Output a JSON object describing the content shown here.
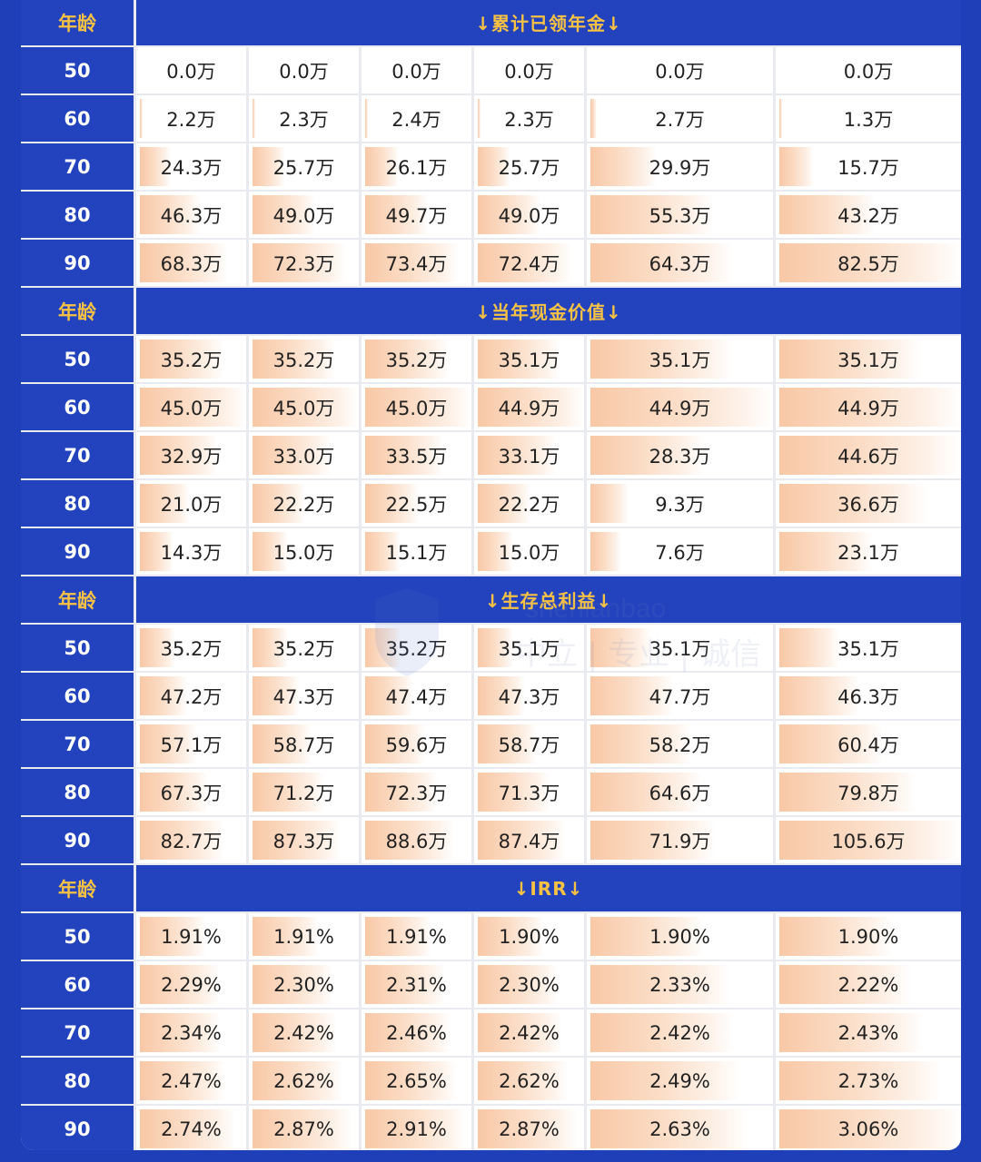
{
  "colors": {
    "header_bg": "#2243bd",
    "title_text": "#f7c244",
    "bar": "#f8c8a6"
  },
  "age_header": "年龄",
  "watermark": {
    "icon": "shield-logo-icon",
    "latin": "shenlanbao",
    "text": "中立 | 专业 | 诚信"
  },
  "chart_data": {
    "type": "table",
    "row_label_header": "年龄",
    "sections": [
      {
        "title": "↓累计已领年金↓",
        "rows": [
          {
            "age": "50",
            "values": [
              0.0,
              0.0,
              0.0,
              0.0,
              0.0,
              0.0
            ],
            "labels": [
              "0.0万",
              "0.0万",
              "0.0万",
              "0.0万",
              "0.0万",
              "0.0万"
            ]
          },
          {
            "age": "60",
            "values": [
              2.2,
              2.3,
              2.4,
              2.3,
              2.7,
              1.3
            ],
            "labels": [
              "2.2万",
              "2.3万",
              "2.4万",
              "2.3万",
              "2.7万",
              "1.3万"
            ]
          },
          {
            "age": "70",
            "values": [
              24.3,
              25.7,
              26.1,
              25.7,
              29.9,
              15.7
            ],
            "labels": [
              "24.3万",
              "25.7万",
              "26.1万",
              "25.7万",
              "29.9万",
              "15.7万"
            ]
          },
          {
            "age": "80",
            "values": [
              46.3,
              49.0,
              49.7,
              49.0,
              55.3,
              43.2
            ],
            "labels": [
              "46.3万",
              "49.0万",
              "49.7万",
              "49.0万",
              "55.3万",
              "43.2万"
            ]
          },
          {
            "age": "90",
            "values": [
              68.3,
              72.3,
              73.4,
              72.4,
              64.3,
              82.5
            ],
            "labels": [
              "68.3万",
              "72.3万",
              "73.4万",
              "72.4万",
              "64.3万",
              "82.5万"
            ]
          }
        ]
      },
      {
        "title": "↓当年现金价值↓",
        "rows": [
          {
            "age": "50",
            "values": [
              35.2,
              35.2,
              35.2,
              35.1,
              35.1,
              35.1
            ],
            "labels": [
              "35.2万",
              "35.2万",
              "35.2万",
              "35.1万",
              "35.1万",
              "35.1万"
            ]
          },
          {
            "age": "60",
            "values": [
              45.0,
              45.0,
              45.0,
              44.9,
              44.9,
              44.9
            ],
            "labels": [
              "45.0万",
              "45.0万",
              "45.0万",
              "44.9万",
              "44.9万",
              "44.9万"
            ]
          },
          {
            "age": "70",
            "values": [
              32.9,
              33.0,
              33.5,
              33.1,
              28.3,
              44.6
            ],
            "labels": [
              "32.9万",
              "33.0万",
              "33.5万",
              "33.1万",
              "28.3万",
              "44.6万"
            ]
          },
          {
            "age": "80",
            "values": [
              21.0,
              22.2,
              22.5,
              22.2,
              9.3,
              36.6
            ],
            "labels": [
              "21.0万",
              "22.2万",
              "22.5万",
              "22.2万",
              "9.3万",
              "36.6万"
            ]
          },
          {
            "age": "90",
            "values": [
              14.3,
              15.0,
              15.1,
              15.0,
              7.6,
              23.1
            ],
            "labels": [
              "14.3万",
              "15.0万",
              "15.1万",
              "15.0万",
              "7.6万",
              "23.1万"
            ]
          }
        ]
      },
      {
        "title": "↓生存总利益↓",
        "rows": [
          {
            "age": "50",
            "values": [
              35.2,
              35.2,
              35.2,
              35.1,
              35.1,
              35.1
            ],
            "labels": [
              "35.2万",
              "35.2万",
              "35.2万",
              "35.1万",
              "35.1万",
              "35.1万"
            ]
          },
          {
            "age": "60",
            "values": [
              47.2,
              47.3,
              47.4,
              47.3,
              47.7,
              46.3
            ],
            "labels": [
              "47.2万",
              "47.3万",
              "47.4万",
              "47.3万",
              "47.7万",
              "46.3万"
            ]
          },
          {
            "age": "70",
            "values": [
              57.1,
              58.7,
              59.6,
              58.7,
              58.2,
              60.4
            ],
            "labels": [
              "57.1万",
              "58.7万",
              "59.6万",
              "58.7万",
              "58.2万",
              "60.4万"
            ]
          },
          {
            "age": "80",
            "values": [
              67.3,
              71.2,
              72.3,
              71.3,
              64.6,
              79.8
            ],
            "labels": [
              "67.3万",
              "71.2万",
              "72.3万",
              "71.3万",
              "64.6万",
              "79.8万"
            ]
          },
          {
            "age": "90",
            "values": [
              82.7,
              87.3,
              88.6,
              87.4,
              71.9,
              105.6
            ],
            "labels": [
              "82.7万",
              "87.3万",
              "88.6万",
              "87.4万",
              "71.9万",
              "105.6万"
            ]
          }
        ]
      },
      {
        "title": "↓IRR↓",
        "rows": [
          {
            "age": "50",
            "values": [
              1.91,
              1.91,
              1.91,
              1.9,
              1.9,
              1.9
            ],
            "labels": [
              "1.91%",
              "1.91%",
              "1.91%",
              "1.90%",
              "1.90%",
              "1.90%"
            ]
          },
          {
            "age": "60",
            "values": [
              2.29,
              2.3,
              2.31,
              2.3,
              2.33,
              2.22
            ],
            "labels": [
              "2.29%",
              "2.30%",
              "2.31%",
              "2.30%",
              "2.33%",
              "2.22%"
            ]
          },
          {
            "age": "70",
            "values": [
              2.34,
              2.42,
              2.46,
              2.42,
              2.42,
              2.43
            ],
            "labels": [
              "2.34%",
              "2.42%",
              "2.46%",
              "2.42%",
              "2.42%",
              "2.43%"
            ]
          },
          {
            "age": "80",
            "values": [
              2.47,
              2.62,
              2.65,
              2.62,
              2.49,
              2.73
            ],
            "labels": [
              "2.47%",
              "2.62%",
              "2.65%",
              "2.62%",
              "2.49%",
              "2.73%"
            ]
          },
          {
            "age": "90",
            "values": [
              2.74,
              2.87,
              2.91,
              2.87,
              2.63,
              3.06
            ],
            "labels": [
              "2.74%",
              "2.87%",
              "2.91%",
              "2.87%",
              "2.63%",
              "3.06%"
            ]
          }
        ]
      }
    ]
  }
}
